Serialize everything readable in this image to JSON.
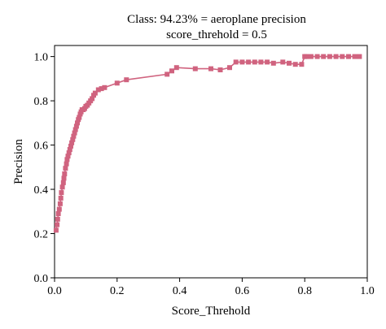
{
  "chart_data": {
    "type": "line",
    "title_lines": [
      "Class: 94.23% = aeroplane precision",
      "score_threhold = 0.5"
    ],
    "xlabel": "Score_Threhold",
    "ylabel": "Precision",
    "xlim": [
      0.0,
      1.0
    ],
    "ylim": [
      0.0,
      1.05
    ],
    "xticks": [
      0.0,
      0.2,
      0.4,
      0.6,
      0.8,
      1.0
    ],
    "xtick_labels": [
      "0.0",
      "0.2",
      "0.4",
      "0.6",
      "0.8",
      "1.0"
    ],
    "yticks": [
      0.0,
      0.2,
      0.4,
      0.6,
      0.8,
      1.0
    ],
    "ytick_labels": [
      "0.0",
      "0.2",
      "0.4",
      "0.6",
      "0.8",
      "1.0"
    ],
    "grid": false,
    "legend": "none",
    "marker": "square",
    "color": "#d0637f",
    "series": [
      {
        "x": [
          0.005,
          0.008,
          0.01,
          0.012,
          0.015,
          0.018,
          0.02,
          0.022,
          0.025,
          0.028,
          0.03,
          0.032,
          0.035,
          0.038,
          0.04,
          0.043,
          0.046,
          0.049,
          0.052,
          0.055,
          0.058,
          0.061,
          0.064,
          0.067,
          0.07,
          0.073,
          0.076,
          0.079,
          0.082,
          0.085,
          0.088,
          0.092,
          0.096,
          0.1,
          0.105,
          0.11,
          0.115,
          0.12,
          0.125,
          0.13,
          0.14,
          0.15,
          0.16,
          0.2,
          0.23,
          0.36,
          0.375,
          0.39,
          0.45,
          0.5,
          0.53,
          0.56,
          0.58,
          0.6,
          0.62,
          0.64,
          0.66,
          0.68,
          0.7,
          0.73,
          0.75,
          0.77,
          0.79,
          0.8,
          0.805,
          0.82,
          0.84,
          0.86,
          0.88,
          0.9,
          0.92,
          0.94,
          0.96,
          0.975
        ],
        "y": [
          0.215,
          0.24,
          0.265,
          0.29,
          0.31,
          0.335,
          0.36,
          0.385,
          0.41,
          0.43,
          0.45,
          0.47,
          0.495,
          0.515,
          0.535,
          0.55,
          0.565,
          0.58,
          0.595,
          0.61,
          0.625,
          0.64,
          0.655,
          0.67,
          0.685,
          0.7,
          0.715,
          0.725,
          0.74,
          0.75,
          0.76,
          0.76,
          0.765,
          0.775,
          0.78,
          0.79,
          0.8,
          0.81,
          0.825,
          0.835,
          0.85,
          0.855,
          0.86,
          0.88,
          0.895,
          0.92,
          0.935,
          0.95,
          0.945,
          0.945,
          0.94,
          0.95,
          0.975,
          0.975,
          0.975,
          0.975,
          0.975,
          0.975,
          0.97,
          0.975,
          0.97,
          0.965,
          0.965,
          1.0,
          1.0,
          1.0,
          1.0,
          1.0,
          1.0,
          1.0,
          1.0,
          1.0,
          1.0,
          1.0
        ]
      }
    ]
  }
}
